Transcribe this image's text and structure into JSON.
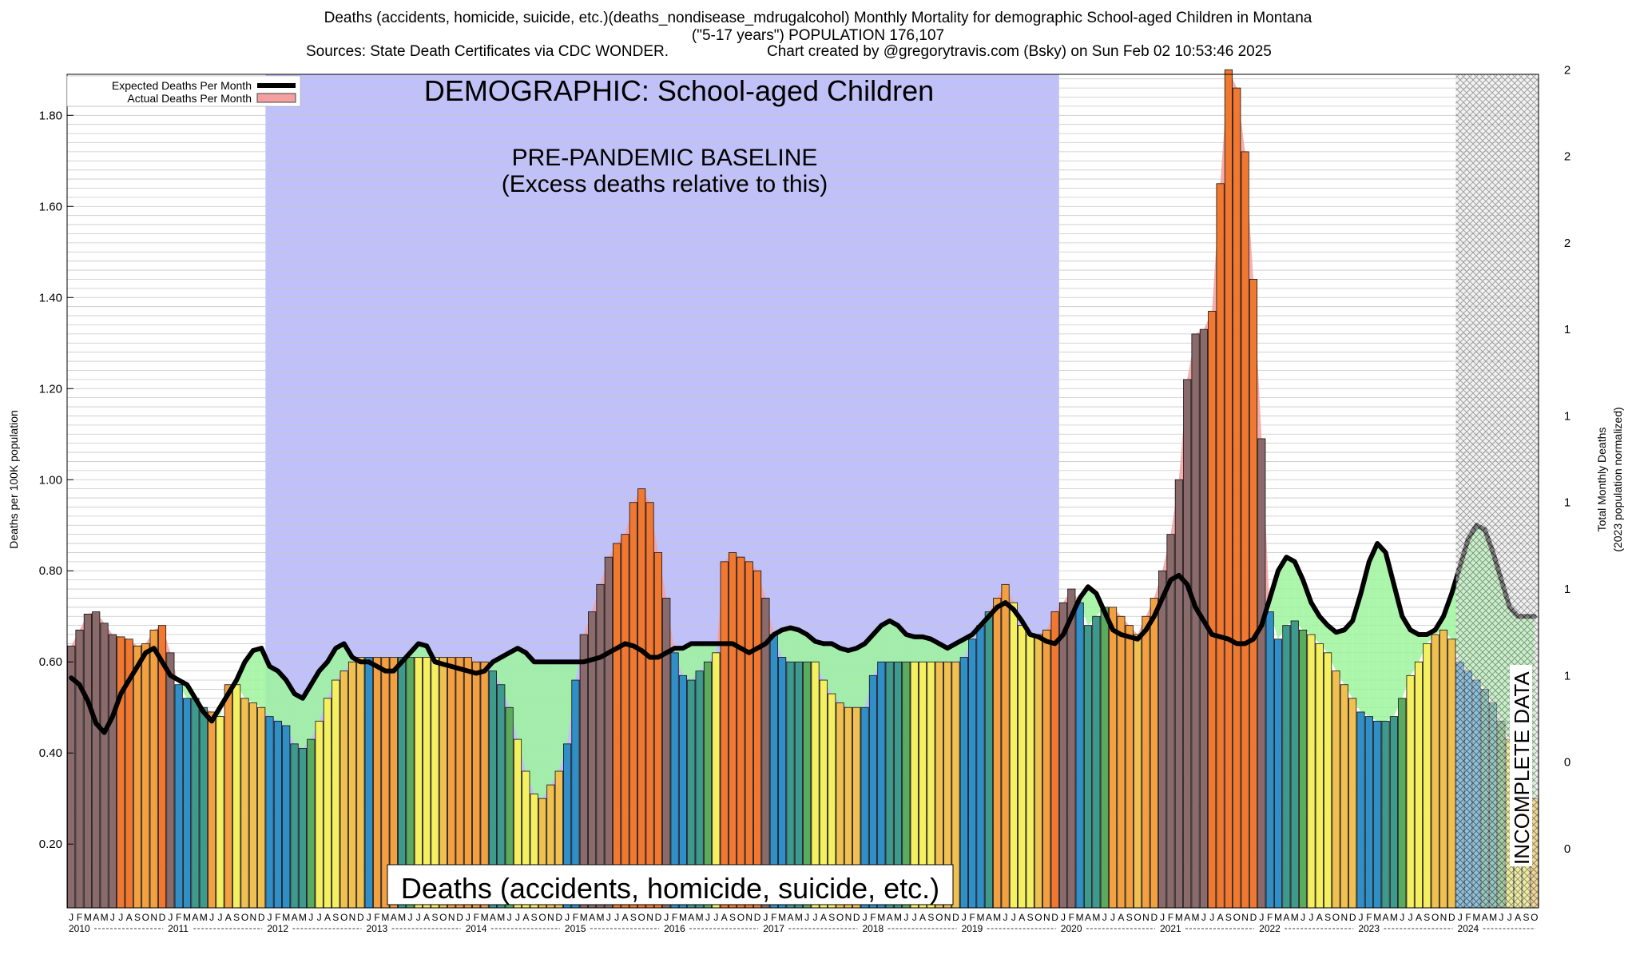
{
  "header": {
    "title_line1": "Deaths (accidents, homicide, suicide, etc.)(deaths_nondisease_mdrugalcohol) Monthly Mortality for demographic School-aged Children in Montana",
    "title_line2": "(\"5-17 years\") POPULATION 176,107",
    "sources": "Sources: State Death Certificates via CDC WONDER.",
    "credit": "Chart created by @gregorytravis.com (Bsky) on Sun Feb 02 10:53:46 2025"
  },
  "annotations": {
    "demographic": "DEMOGRAPHIC: School-aged Children",
    "baseline_line1": "PRE-PANDEMIC BASELINE",
    "baseline_line2": "(Excess deaths relative to this)",
    "cause_label": "Deaths (accidents, homicide, suicide, etc.)",
    "incomplete": "INCOMPLETE DATA"
  },
  "colors": {
    "baseline_region": "#c0c0fa",
    "expected_line": "#000000",
    "excess_fill": "#f4a0a0",
    "deficit_fill": "#9ef59e",
    "season_palette": [
      "#2f8fc6",
      "#3f9a8e",
      "#5aab5e",
      "#f5f060",
      "#f0c050",
      "#f2a040",
      "#f07830"
    ],
    "incomplete_hatch": "#555555"
  },
  "chart_data": {
    "type": "bar",
    "title": "Deaths (accidents, homicide, suicide, etc.)(deaths_nondisease_mdrugalcohol) Monthly Mortality for demographic School-aged Children in Montana",
    "ylabel": "Deaths per 100K population",
    "y2label_line1": "Total Monthly Deaths",
    "y2label_line2": "(2023 population normalized)",
    "ylim": [
      0.06,
      1.89
    ],
    "yticks": [
      "0.20",
      "0.40",
      "0.60",
      "0.80",
      "1.00",
      "1.20",
      "1.40",
      "1.60",
      "1.80"
    ],
    "y2ticks": [
      {
        "y": 0.19,
        "label": "0"
      },
      {
        "y": 0.38,
        "label": "0"
      },
      {
        "y": 0.57,
        "label": "1"
      },
      {
        "y": 0.76,
        "label": "1"
      },
      {
        "y": 0.95,
        "label": "1"
      },
      {
        "y": 1.14,
        "label": "1"
      },
      {
        "y": 1.33,
        "label": "1"
      },
      {
        "y": 1.52,
        "label": "2"
      },
      {
        "y": 1.71,
        "label": "2"
      },
      {
        "y": 1.9,
        "label": "2"
      }
    ],
    "grid": true,
    "legend": {
      "position": "top-left",
      "entries": [
        {
          "label": "Expected Deaths Per Month",
          "kind": "line"
        },
        {
          "label": "Actual Deaths Per Month",
          "kind": "fill"
        }
      ]
    },
    "years": [
      "2010",
      "2011",
      "2012",
      "2013",
      "2014",
      "2015",
      "2016",
      "2017",
      "2018",
      "2019",
      "2020",
      "2021",
      "2022",
      "2023",
      "2024"
    ],
    "month_letters": [
      "J",
      "F",
      "M",
      "A",
      "M",
      "J",
      "J",
      "A",
      "S",
      "O",
      "N",
      "D"
    ],
    "baseline_range": {
      "start_month": "2012-01",
      "end_month": "2019-12"
    },
    "incomplete_range": {
      "start_month": "2024-01",
      "end_month": "2024-10"
    },
    "n_months": 178,
    "series": [
      {
        "name": "Actual Deaths Per Month",
        "values": [
          0.635,
          0.67,
          0.705,
          0.71,
          0.685,
          0.66,
          0.655,
          0.65,
          0.635,
          0.64,
          0.67,
          0.68,
          0.62,
          0.55,
          0.52,
          0.52,
          0.5,
          0.49,
          0.48,
          0.55,
          0.55,
          0.52,
          0.51,
          0.5,
          0.48,
          0.47,
          0.46,
          0.42,
          0.41,
          0.43,
          0.47,
          0.52,
          0.56,
          0.58,
          0.6,
          0.61,
          0.61,
          0.61,
          0.61,
          0.61,
          0.61,
          0.61,
          0.61,
          0.61,
          0.61,
          0.61,
          0.61,
          0.61,
          0.61,
          0.6,
          0.6,
          0.58,
          0.55,
          0.5,
          0.43,
          0.36,
          0.31,
          0.3,
          0.33,
          0.36,
          0.42,
          0.56,
          0.66,
          0.71,
          0.77,
          0.83,
          0.86,
          0.88,
          0.95,
          0.98,
          0.95,
          0.84,
          0.74,
          0.62,
          0.57,
          0.56,
          0.58,
          0.6,
          0.62,
          0.82,
          0.84,
          0.83,
          0.82,
          0.8,
          0.74,
          0.66,
          0.61,
          0.6,
          0.6,
          0.6,
          0.6,
          0.56,
          0.53,
          0.51,
          0.5,
          0.5,
          0.5,
          0.57,
          0.6,
          0.6,
          0.6,
          0.6,
          0.6,
          0.6,
          0.6,
          0.6,
          0.6,
          0.6,
          0.61,
          0.65,
          0.68,
          0.71,
          0.74,
          0.77,
          0.73,
          0.68,
          0.66,
          0.66,
          0.67,
          0.71,
          0.73,
          0.76,
          0.73,
          0.68,
          0.7,
          0.72,
          0.72,
          0.7,
          0.68,
          0.66,
          0.7,
          0.74,
          0.8,
          0.88,
          1.0,
          1.22,
          1.32,
          1.33,
          1.37,
          1.65,
          1.9,
          1.86,
          1.72,
          1.44,
          1.09,
          0.71,
          0.65,
          0.68,
          0.69,
          0.67,
          0.66,
          0.64,
          0.62,
          0.58,
          0.55,
          0.52,
          0.49,
          0.48,
          0.47,
          0.47,
          0.48,
          0.52,
          0.57,
          0.6,
          0.64,
          0.66,
          0.67,
          0.65,
          0.6,
          0.58,
          0.56,
          0.54,
          0.51,
          0.47,
          0.43,
          0.33,
          0.3,
          0.3
        ]
      },
      {
        "name": "Expected Deaths Per Month",
        "values": [
          0.565,
          0.55,
          0.515,
          0.465,
          0.445,
          0.48,
          0.53,
          0.56,
          0.59,
          0.62,
          0.63,
          0.6,
          0.57,
          0.56,
          0.55,
          0.52,
          0.49,
          0.47,
          0.5,
          0.53,
          0.56,
          0.6,
          0.625,
          0.63,
          0.59,
          0.58,
          0.56,
          0.53,
          0.52,
          0.55,
          0.58,
          0.6,
          0.63,
          0.64,
          0.61,
          0.6,
          0.6,
          0.59,
          0.58,
          0.58,
          0.6,
          0.62,
          0.64,
          0.635,
          0.6,
          0.595,
          0.59,
          0.585,
          0.58,
          0.575,
          0.58,
          0.6,
          0.61,
          0.62,
          0.63,
          0.62,
          0.6,
          0.6,
          0.6,
          0.6,
          0.6,
          0.6,
          0.6,
          0.605,
          0.61,
          0.62,
          0.63,
          0.64,
          0.635,
          0.625,
          0.61,
          0.61,
          0.62,
          0.63,
          0.63,
          0.64,
          0.64,
          0.64,
          0.64,
          0.64,
          0.64,
          0.63,
          0.62,
          0.63,
          0.64,
          0.66,
          0.67,
          0.675,
          0.67,
          0.66,
          0.645,
          0.64,
          0.64,
          0.63,
          0.625,
          0.63,
          0.64,
          0.66,
          0.68,
          0.69,
          0.68,
          0.66,
          0.655,
          0.655,
          0.65,
          0.64,
          0.63,
          0.64,
          0.65,
          0.66,
          0.68,
          0.7,
          0.72,
          0.73,
          0.715,
          0.69,
          0.66,
          0.655,
          0.645,
          0.64,
          0.66,
          0.7,
          0.74,
          0.765,
          0.75,
          0.71,
          0.67,
          0.66,
          0.655,
          0.65,
          0.67,
          0.7,
          0.74,
          0.78,
          0.79,
          0.77,
          0.72,
          0.69,
          0.66,
          0.655,
          0.65,
          0.64,
          0.64,
          0.65,
          0.68,
          0.74,
          0.8,
          0.83,
          0.82,
          0.78,
          0.73,
          0.7,
          0.68,
          0.665,
          0.67,
          0.69,
          0.75,
          0.82,
          0.86,
          0.84,
          0.77,
          0.7,
          0.67,
          0.66,
          0.66,
          0.67,
          0.7,
          0.75,
          0.81,
          0.87,
          0.9,
          0.89,
          0.84,
          0.78,
          0.72,
          0.7,
          0.7,
          0.7
        ]
      }
    ]
  }
}
